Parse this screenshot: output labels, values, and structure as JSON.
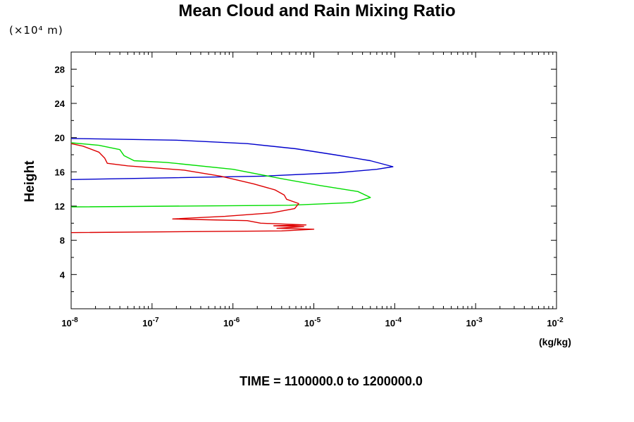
{
  "chart_data": {
    "type": "line",
    "title": "Mean Cloud and Rain Mixing Ratio",
    "ylabel": "Height",
    "yunit": "(×10⁴ m)",
    "xlabel": "(kg/kg)",
    "footer": "TIME = 1100000.0 to 1200000.0",
    "xscale": "log",
    "xlim": [
      1e-08,
      0.01
    ],
    "ylim": [
      0,
      30
    ],
    "xtick_exponents": [
      -8,
      -7,
      -6,
      -5,
      -4,
      -3,
      -2
    ],
    "yticks": [
      4,
      8,
      12,
      16,
      20,
      24,
      28
    ],
    "series": [
      {
        "color": "#0000cc",
        "points": [
          [
            1e-08,
            15.1
          ],
          [
            2.4e-06,
            15.5
          ],
          [
            2e-05,
            15.9
          ],
          [
            6e-05,
            16.3
          ],
          [
            9.5e-05,
            16.6
          ],
          [
            5e-05,
            17.3
          ],
          [
            1.8e-05,
            18.0
          ],
          [
            6e-06,
            18.7
          ],
          [
            1.5e-06,
            19.3
          ],
          [
            2e-07,
            19.7
          ],
          [
            1e-08,
            19.9
          ]
        ]
      },
      {
        "color": "#00dd00",
        "points": [
          [
            1e-08,
            11.9
          ],
          [
            5e-06,
            12.1
          ],
          [
            3e-05,
            12.4
          ],
          [
            5e-05,
            13.0
          ],
          [
            3.5e-05,
            13.7
          ],
          [
            1.2e-05,
            14.4
          ],
          [
            4e-06,
            15.2
          ],
          [
            1e-06,
            16.3
          ],
          [
            1.5e-07,
            17.1
          ],
          [
            6e-08,
            17.3
          ],
          [
            4.5e-08,
            17.9
          ],
          [
            4e-08,
            18.6
          ],
          [
            2.2e-08,
            19.1
          ],
          [
            1e-08,
            19.4
          ]
        ]
      },
      {
        "color": "#dd0000",
        "points": [
          [
            1e-08,
            8.9
          ],
          [
            4e-06,
            9.1
          ],
          [
            1e-05,
            9.3
          ],
          [
            3.5e-06,
            9.4
          ],
          [
            7.5e-06,
            9.6
          ],
          [
            3.2e-06,
            9.7
          ],
          [
            8e-06,
            9.8
          ],
          [
            2.2e-06,
            10.0
          ],
          [
            1.5e-06,
            10.3
          ],
          [
            5e-07,
            10.4
          ],
          [
            1.8e-07,
            10.5
          ],
          [
            8e-07,
            10.8
          ],
          [
            3e-06,
            11.2
          ],
          [
            5.8e-06,
            11.7
          ],
          [
            6.5e-06,
            12.3
          ],
          [
            4.6e-06,
            12.8
          ],
          [
            4.3e-06,
            13.3
          ],
          [
            3.3e-06,
            13.9
          ],
          [
            1.8e-06,
            14.6
          ],
          [
            7e-07,
            15.5
          ],
          [
            2.5e-07,
            16.2
          ],
          [
            5e-08,
            16.7
          ],
          [
            2.8e-08,
            17.0
          ],
          [
            2.6e-08,
            17.6
          ],
          [
            2.2e-08,
            18.3
          ],
          [
            1.4e-08,
            19.0
          ],
          [
            1e-08,
            19.3
          ]
        ]
      }
    ]
  }
}
